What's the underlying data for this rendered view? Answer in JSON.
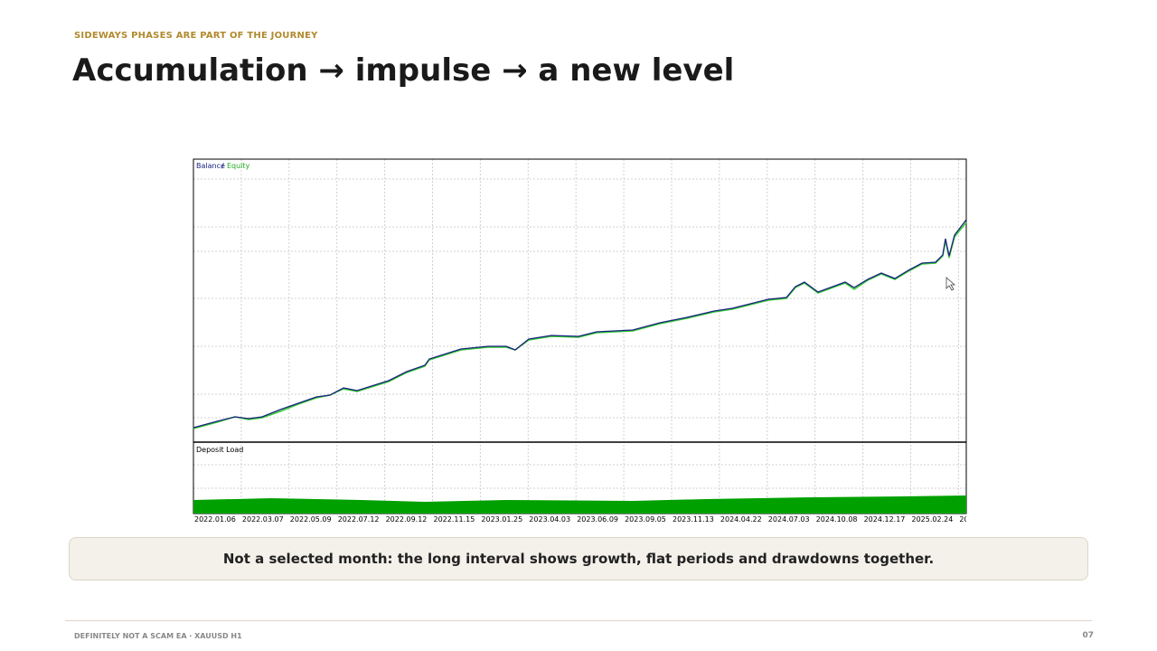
{
  "header": {
    "kicker": "SIDEWAYS PHASES ARE PART OF THE JOURNEY",
    "title": "Accumulation → impulse → a new level"
  },
  "chart": {
    "legend": {
      "balance": "Balance",
      "separator": "/",
      "equity": "Equity"
    },
    "lower_pane": "Deposit Load",
    "dates": [
      "2022.01.06",
      "2022.03.07",
      "2022.05.09",
      "2022.07.12",
      "2022.09.12",
      "2022.11.15",
      "2023.01.25",
      "2023.04.03",
      "2023.06.09",
      "2023.09.05",
      "2023.11.13",
      "2024.04.22",
      "2024.07.03",
      "2024.10.08",
      "2024.12.17",
      "2025.02.24",
      "20"
    ]
  },
  "caption": "Not a selected month: the long interval shows growth, flat periods and drawdowns together.",
  "footer": {
    "left": "DEFINITELY NOT A SCAM EA · XAUUSD H1",
    "page": "07"
  }
}
